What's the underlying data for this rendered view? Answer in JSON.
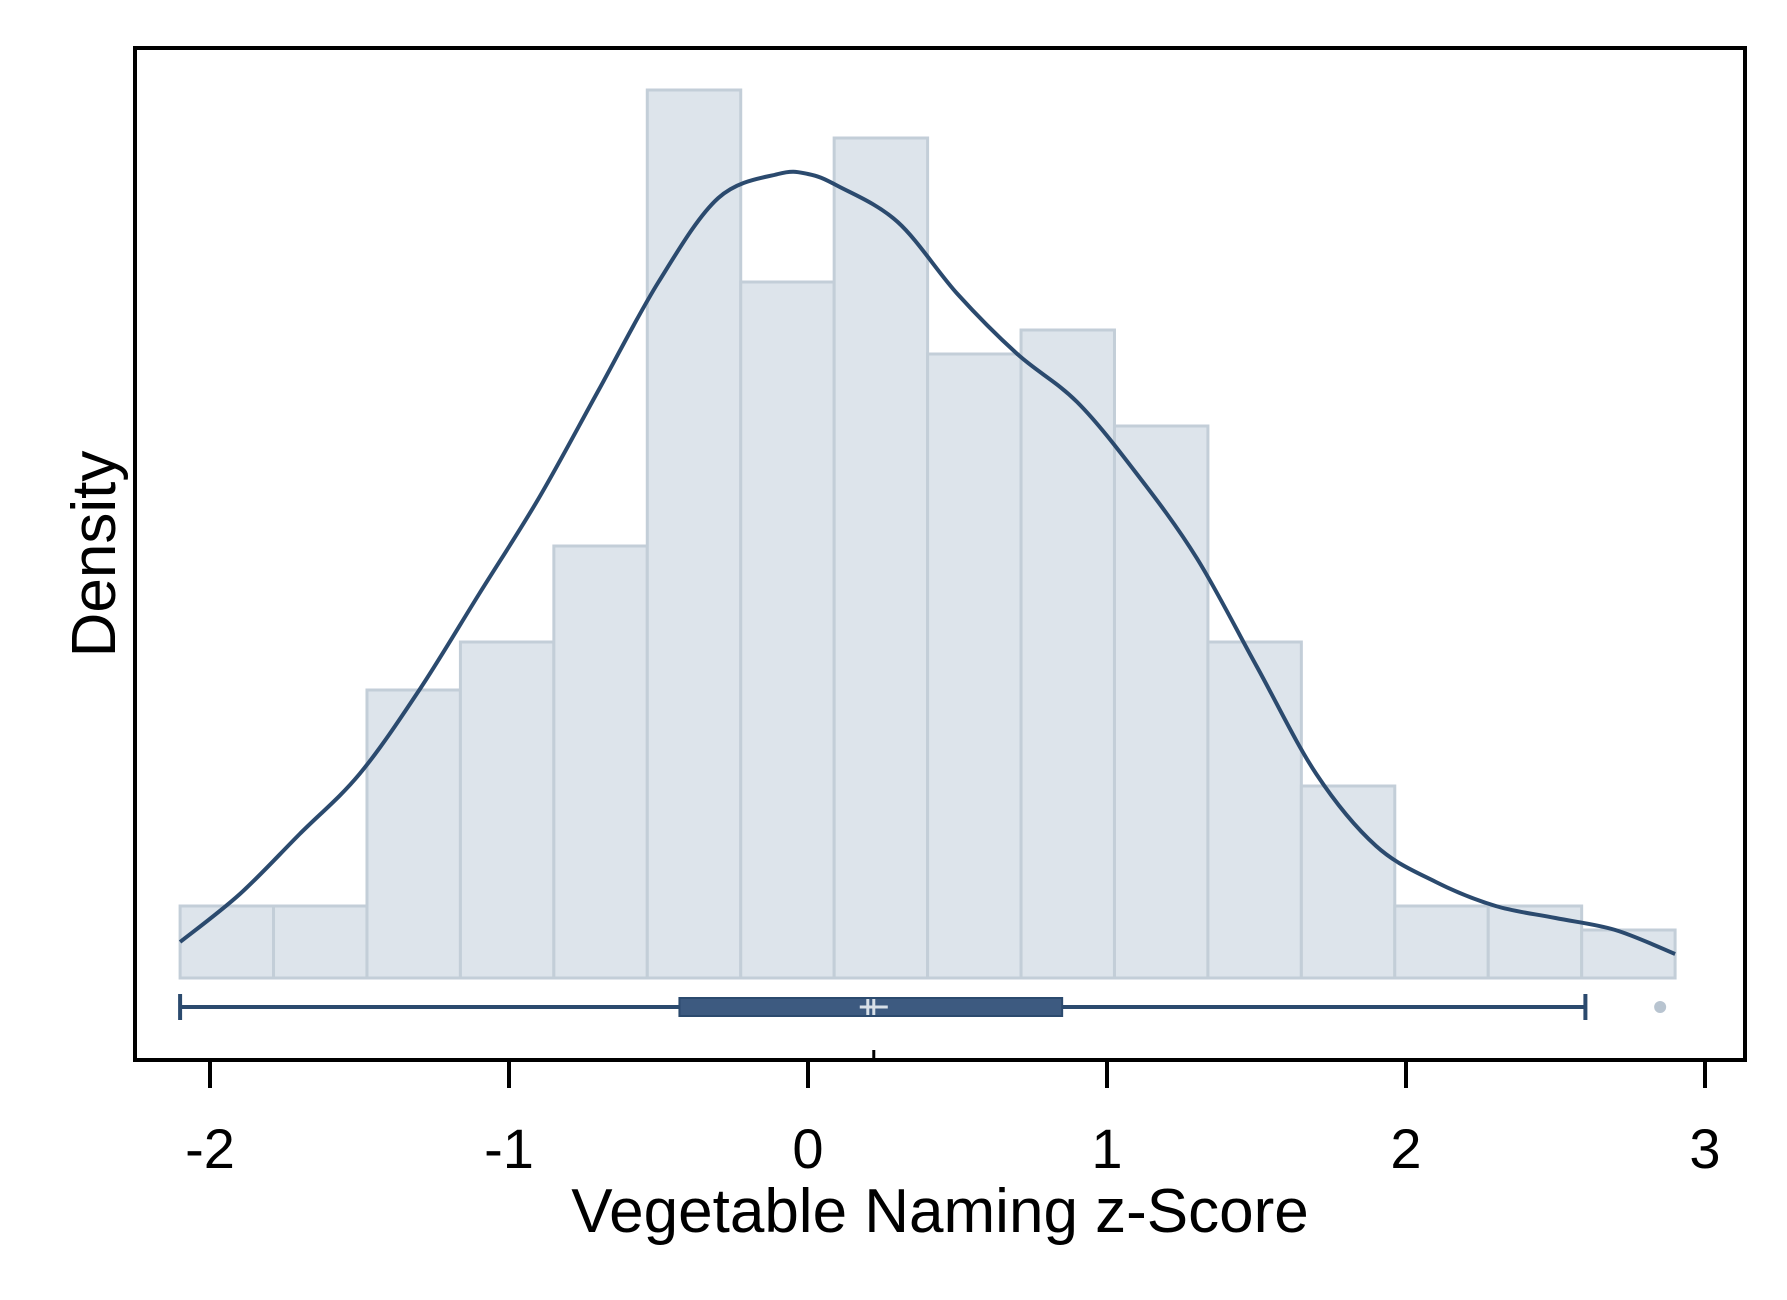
{
  "chart_data": {
    "type": "histogram",
    "title": "",
    "xlabel": "Vegetable Naming z-Score",
    "ylabel": "Density",
    "xlim": [
      -2.2,
      3.1
    ],
    "x_ticks": [
      -2,
      -1,
      0,
      1,
      2,
      3
    ],
    "x_tick_labels": [
      "-2",
      "-1",
      "0",
      "1",
      "2",
      "3"
    ],
    "y_ticks_shown": false,
    "grid": false,
    "legend": "none",
    "colors": {
      "bar_fill": "#dde4eb",
      "bar_stroke": "#c3ced8",
      "line": "#2b4a6e",
      "box_fill": "#3d5a80",
      "outlier": "#b8c4d0",
      "frame": "#000000"
    },
    "histogram": {
      "bin_width": 0.3125,
      "bins": [
        {
          "start": -2.1,
          "end": -1.7875,
          "density": 0.06
        },
        {
          "start": -1.7875,
          "end": -1.475,
          "density": 0.06
        },
        {
          "start": -1.475,
          "end": -1.1625,
          "density": 0.24
        },
        {
          "start": -1.1625,
          "end": -0.85,
          "density": 0.28
        },
        {
          "start": -0.85,
          "end": -0.5375,
          "density": 0.36
        },
        {
          "start": -0.5375,
          "end": -0.225,
          "density": 0.74
        },
        {
          "start": -0.225,
          "end": 0.0875,
          "density": 0.58
        },
        {
          "start": 0.0875,
          "end": 0.4,
          "density": 0.7
        },
        {
          "start": 0.4,
          "end": 0.7125,
          "density": 0.52
        },
        {
          "start": 0.7125,
          "end": 1.025,
          "density": 0.54
        },
        {
          "start": 1.025,
          "end": 1.3375,
          "density": 0.46
        },
        {
          "start": 1.3375,
          "end": 1.65,
          "density": 0.28
        },
        {
          "start": 1.65,
          "end": 1.9625,
          "density": 0.16
        },
        {
          "start": 1.9625,
          "end": 2.275,
          "density": 0.06
        },
        {
          "start": 2.275,
          "end": 2.5875,
          "density": 0.06
        },
        {
          "start": 2.5875,
          "end": 2.9,
          "density": 0.04
        }
      ]
    },
    "density_curve": {
      "x": [
        -2.1,
        -1.9,
        -1.7,
        -1.5,
        -1.3,
        -1.1,
        -0.9,
        -0.7,
        -0.5,
        -0.3,
        -0.1,
        0.0,
        0.1,
        0.3,
        0.5,
        0.7,
        0.9,
        1.1,
        1.3,
        1.5,
        1.7,
        1.9,
        2.1,
        2.3,
        2.5,
        2.7,
        2.9
      ],
      "y": [
        0.03,
        0.07,
        0.12,
        0.17,
        0.24,
        0.32,
        0.4,
        0.49,
        0.58,
        0.65,
        0.67,
        0.67,
        0.66,
        0.63,
        0.57,
        0.52,
        0.48,
        0.42,
        0.35,
        0.26,
        0.17,
        0.11,
        0.08,
        0.06,
        0.05,
        0.04,
        0.02
      ]
    },
    "boxplot": {
      "whisker_low": -2.1,
      "q1": -0.43,
      "median": 0.2,
      "mean": 0.22,
      "q3": 0.85,
      "whisker_high": 2.6,
      "outliers": [
        2.85
      ]
    },
    "ylim": [
      0,
      0.8
    ]
  }
}
